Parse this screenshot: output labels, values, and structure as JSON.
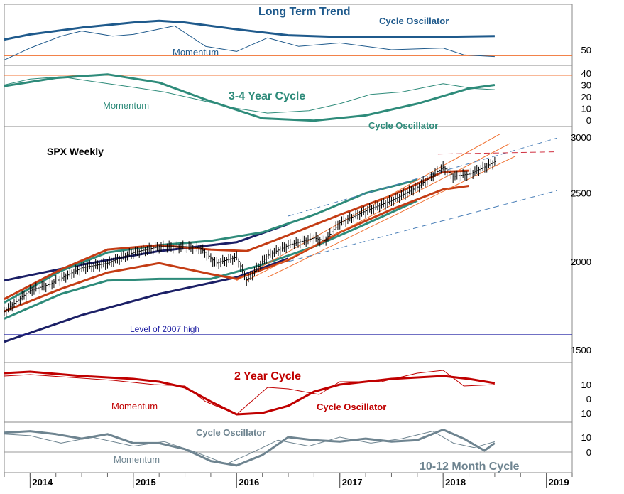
{
  "chart_data": {
    "type": "line",
    "title": "SPX Weekly",
    "x_axis": {
      "range": [
        2013.75,
        2019.25
      ],
      "year_ticks": [
        "2014",
        "2015",
        "2016",
        "2017",
        "2018",
        "2019"
      ]
    },
    "colors": {
      "long_term": "#1f5a8c",
      "cycle_3_4": "#2e8b7a",
      "cycle_2yr": "#c00000",
      "cycle_10_12": "#6e8490",
      "envelope_navy": "#1b1f66",
      "trend_orange": "#f07030",
      "dashed_blue": "#4a7fb8",
      "dashed_red": "#d03040",
      "price": "#000000"
    },
    "panels": [
      {
        "name": "long_term_trend",
        "title": "Long Term Trend",
        "labels": [
          "Cycle Oscillator",
          "Momentum"
        ],
        "y_ticks": [
          "50"
        ],
        "series": [
          {
            "name": "Cycle Oscillator",
            "x": [
              2013.75,
              2014.0,
              2014.5,
              2015.0,
              2015.25,
              2015.5,
              2016.0,
              2016.5,
              2017.0,
              2017.5,
              2018.0,
              2018.5
            ],
            "y": [
              56,
              59,
              63,
              66,
              67,
              66,
              62,
              58.5,
              57.5,
              57.3,
              57.6,
              58
            ]
          },
          {
            "name": "Momentum",
            "x": [
              2013.75,
              2014.0,
              2014.3,
              2014.5,
              2014.8,
              2015.0,
              2015.4,
              2015.7,
              2016.0,
              2016.3,
              2016.6,
              2017.0,
              2017.5,
              2018.0,
              2018.2,
              2018.5
            ],
            "y": [
              44,
              51,
              58,
              61,
              58,
              59,
              64,
              52,
              49,
              57,
              52,
              54,
              50,
              51,
              47,
              46
            ]
          }
        ],
        "hlines": [
          {
            "y": 46.5,
            "color": "#f07030"
          }
        ]
      },
      {
        "name": "cycle_3_4_year",
        "title": "3-4 Year Cycle",
        "labels": [
          "Momentum",
          "Cycle Oscillator"
        ],
        "y_ticks": [
          "40",
          "30",
          "20",
          "10",
          "0"
        ],
        "series": [
          {
            "name": "Cycle Oscillator",
            "x": [
              2013.75,
              2014.25,
              2014.75,
              2015.25,
              2015.75,
              2016.25,
              2016.75,
              2017.25,
              2017.75,
              2018.25,
              2018.5
            ],
            "y": [
              29,
              36,
              39,
              32,
              16,
              1.5,
              -0.5,
              4,
              14,
              27,
              30
            ]
          },
          {
            "name": "Momentum",
            "x": [
              2013.75,
              2014.0,
              2014.3,
              2014.6,
              2015.0,
              2015.3,
              2015.6,
              2016.0,
              2016.3,
              2016.7,
              2017.0,
              2017.3,
              2017.6,
              2018.0,
              2018.3,
              2018.5
            ],
            "y": [
              30,
              35,
              37,
              33,
              28,
              24,
              18,
              10,
              6,
              8,
              14,
              22,
              24,
              31,
              27,
              26
            ]
          }
        ],
        "hlines": [
          {
            "y": 40,
            "color": "#f07030"
          }
        ]
      },
      {
        "name": "price",
        "title": "SPX Weekly",
        "scale": "log",
        "y_ticks": [
          "3000",
          "2500",
          "2000",
          "1500"
        ],
        "annotations": [
          {
            "text": "Level of 2007 high",
            "y": 1576
          }
        ],
        "close": {
          "x": [
            2013.75,
            2014.0,
            2014.2,
            2014.5,
            2014.75,
            2015.0,
            2015.25,
            2015.5,
            2015.65,
            2015.8,
            2016.0,
            2016.1,
            2016.3,
            2016.5,
            2016.75,
            2016.85,
            2017.0,
            2017.25,
            2017.5,
            2017.75,
            2018.0,
            2018.1,
            2018.25,
            2018.4,
            2018.5
          ],
          "y": [
            1700,
            1820,
            1860,
            1960,
            1990,
            2060,
            2100,
            2100,
            2090,
            1990,
            2030,
            1880,
            2040,
            2110,
            2160,
            2140,
            2270,
            2360,
            2440,
            2550,
            2720,
            2640,
            2660,
            2720,
            2770
          ]
        },
        "bands": [
          {
            "name": "upper navy",
            "x": [
              2013.75,
              2014.5,
              2015.25,
              2016.0,
              2016.5,
              2016.5
            ],
            "y": [
              1880,
              1980,
              2070,
              2130,
              2260,
              2260
            ]
          },
          {
            "name": "lower navy",
            "x": [
              2013.75,
              2014.5,
              2015.25,
              2016.0,
              2016.5
            ],
            "y": [
              1540,
              1680,
              1800,
              1900,
              2020
            ]
          },
          {
            "name": "upper teal",
            "x": [
              2013.75,
              2014.3,
              2014.75,
              2015.25,
              2015.75,
              2016.25,
              2016.75,
              2017.25,
              2017.75
            ],
            "y": [
              1750,
              1940,
              2060,
              2110,
              2140,
              2200,
              2330,
              2500,
              2610
            ]
          },
          {
            "name": "lower teal",
            "x": [
              2013.75,
              2014.3,
              2014.75,
              2015.25,
              2015.75,
              2016.25,
              2016.75,
              2017.25,
              2017.75
            ],
            "y": [
              1660,
              1800,
              1880,
              1890,
              1890,
              1980,
              2100,
              2260,
              2440
            ]
          },
          {
            "name": "upper red",
            "x": [
              2013.75,
              2014.3,
              2014.75,
              2015.25,
              2015.75,
              2016.1,
              2016.5,
              2017.0,
              2017.5,
              2018.0,
              2018.25
            ],
            "y": [
              1770,
              1950,
              2080,
              2110,
              2080,
              2070,
              2180,
              2330,
              2480,
              2680,
              2690
            ]
          },
          {
            "name": "lower red",
            "x": [
              2013.75,
              2014.3,
              2014.75,
              2015.25,
              2015.75,
              2016.0,
              2016.5,
              2017.0,
              2017.5,
              2018.0,
              2018.25
            ],
            "y": [
              1700,
              1830,
              1930,
              1990,
              1920,
              1890,
              2010,
              2200,
              2370,
              2530,
              2560
            ]
          }
        ],
        "trendlines": [
          {
            "color": "orange",
            "x": [
              2016.0,
              2018.55
            ],
            "y": [
              1880,
              3030
            ]
          },
          {
            "color": "orange",
            "x": [
              2016.1,
              2018.65
            ],
            "y": [
              1880,
              2940
            ]
          },
          {
            "color": "orange",
            "x": [
              2016.3,
              2018.7
            ],
            "y": [
              1900,
              2820
            ]
          },
          {
            "color": "dashed blue",
            "x": [
              2016.5,
              2019.1
            ],
            "y": [
              2320,
              2990
            ]
          },
          {
            "color": "dashed blue",
            "x": [
              2016.5,
              2019.1
            ],
            "y": [
              2000,
              2520
            ]
          },
          {
            "color": "dashed red",
            "x": [
              2017.95,
              2019.1
            ],
            "y": [
              2840,
              2860
            ]
          }
        ]
      },
      {
        "name": "cycle_2_year",
        "title": "2 Year Cycle",
        "labels": [
          "Momentum",
          "Cycle Oscillator"
        ],
        "y_ticks": [
          "10",
          "0",
          "-10"
        ],
        "series": [
          {
            "name": "Cycle Oscillator",
            "x": [
              2013.75,
              2014.0,
              2014.5,
              2015.0,
              2015.25,
              2015.5,
              2015.75,
              2016.0,
              2016.25,
              2016.5,
              2016.75,
              2017.0,
              2017.5,
              2018.0,
              2018.25,
              2018.5
            ],
            "y": [
              18,
              19,
              16,
              14,
              12,
              8,
              -2,
              -11,
              -10,
              -5,
              5,
              10,
              14,
              16,
              14,
              11
            ]
          },
          {
            "name": "Momentum",
            "x": [
              2013.75,
              2014.0,
              2014.4,
              2014.8,
              2015.2,
              2015.5,
              2015.7,
              2016.0,
              2016.3,
              2016.5,
              2016.8,
              2017.0,
              2017.4,
              2017.75,
              2018.0,
              2018.2,
              2018.5
            ],
            "y": [
              16,
              17,
              15,
              13,
              10,
              9,
              -2,
              -11,
              8,
              7,
              3,
              12,
              12,
              18,
              20,
              9,
              10
            ]
          }
        ]
      },
      {
        "name": "cycle_10_12_month",
        "title": "10-12 Month Cycle",
        "labels": [
          "Cycle Oscillator",
          "Momentum"
        ],
        "y_ticks": [
          "10",
          "0"
        ],
        "series": [
          {
            "name": "Cycle Oscillator",
            "x": [
              2013.75,
              2014.0,
              2014.25,
              2014.5,
              2014.75,
              2015.0,
              2015.25,
              2015.5,
              2015.75,
              2016.0,
              2016.25,
              2016.5,
              2016.75,
              2017.0,
              2017.25,
              2017.5,
              2017.75,
              2018.0,
              2018.2,
              2018.4,
              2018.5
            ],
            "y": [
              13,
              14,
              12,
              9,
              12,
              6,
              6,
              2,
              -6,
              -9,
              -2,
              10,
              8,
              7,
              9,
              7,
              8,
              15,
              9,
              1,
              6
            ]
          },
          {
            "name": "Momentum",
            "x": [
              2013.75,
              2014.0,
              2014.3,
              2014.6,
              2015.0,
              2015.3,
              2015.6,
              2015.9,
              2016.1,
              2016.4,
              2016.7,
              2017.0,
              2017.3,
              2017.6,
              2017.9,
              2018.1,
              2018.3,
              2018.5
            ],
            "y": [
              12,
              11,
              6,
              10,
              4,
              7,
              0,
              -8,
              -2,
              8,
              4,
              10,
              6,
              9,
              14,
              6,
              3,
              7
            ]
          }
        ]
      }
    ]
  }
}
